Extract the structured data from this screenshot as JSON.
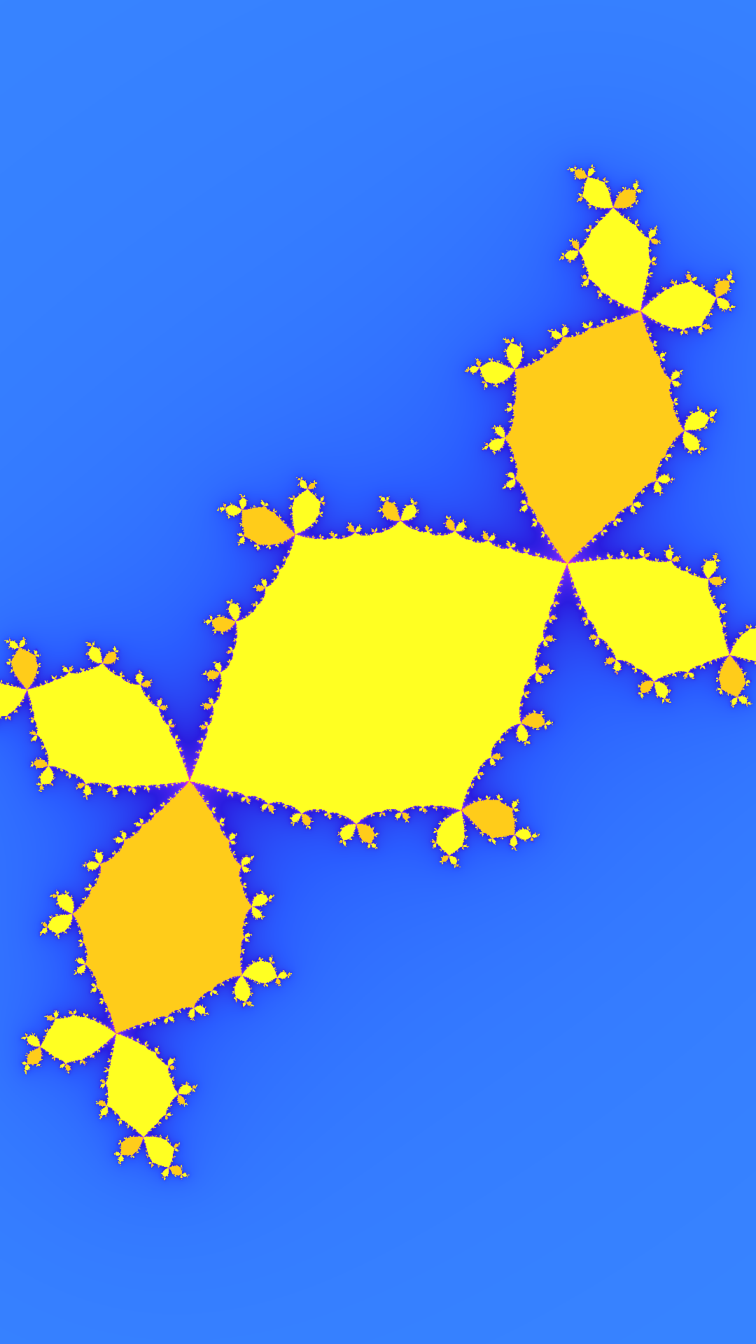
{
  "image": {
    "subject": "julia-set-fractal",
    "palette": {
      "background_light": "#3a8cff",
      "background_mid": "#2a5cff",
      "filament_dark": "#2a1de0",
      "filament_violet": "#7a2cff",
      "edge_magenta": "#ff33cc",
      "edge_red": "#ff2a2a",
      "edge_cyan": "#22d3ff",
      "edge_green": "#55ff55",
      "body_lime": "#dfff33",
      "body_yellow": "#ffff22",
      "core_orange": "#ffcc1a"
    }
  }
}
